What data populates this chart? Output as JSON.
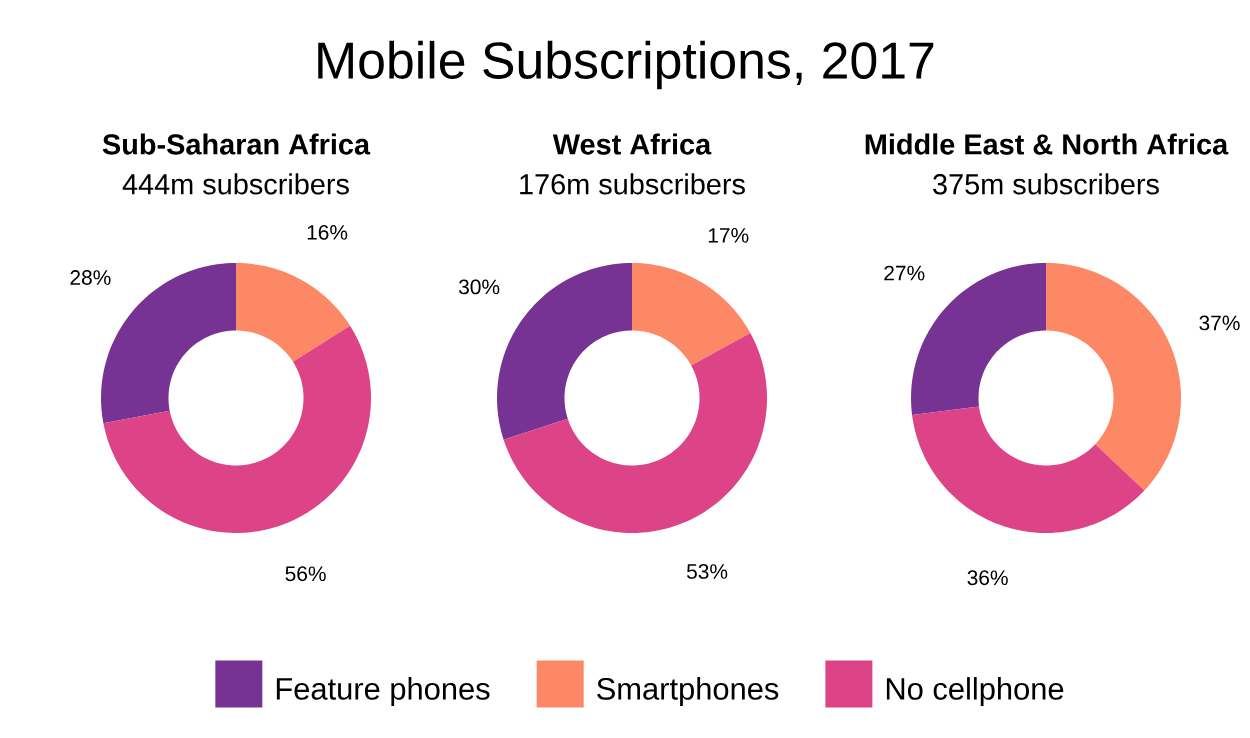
{
  "chart_data": [
    {
      "type": "other",
      "title": "Mobile Subscriptions, 2017"
    },
    {
      "type": "donut",
      "title": "Sub-Saharan Africa",
      "subtitle": "444m subscribers",
      "categories": [
        null,
        null,
        null
      ],
      "values": [
        28,
        16,
        56
      ],
      "value_labels": [
        "28%",
        "16%",
        "56%"
      ],
      "colors": [
        "#773394",
        "#fd8865",
        "#dd4387"
      ]
    },
    {
      "type": "donut",
      "title": "West Africa",
      "subtitle": "176m subscribers",
      "categories": [
        "Feature phones",
        "Smartphones",
        "No cellphone"
      ],
      "values": [
        30,
        17,
        53
      ],
      "value_labels": [
        "30%",
        "17%",
        "53%"
      ],
      "colors": [
        "#773394",
        "#fd8865",
        "#dd4387"
      ],
      "legend": "bottom"
    },
    {
      "type": "donut",
      "title": "Middle East & North Africa",
      "subtitle": "375m subscribers",
      "categories": [
        null,
        null,
        null
      ],
      "values": [
        27,
        37,
        36
      ],
      "value_labels": [
        "27%",
        "37%",
        "36%"
      ],
      "colors": [
        "#773394",
        "#fd8865",
        "#dd4387"
      ]
    }
  ]
}
